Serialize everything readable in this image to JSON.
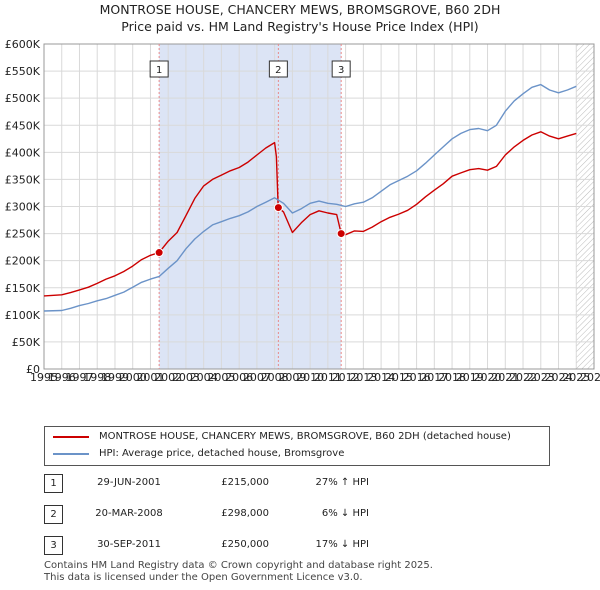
{
  "title_line1": "MONTROSE HOUSE, CHANCERY MEWS, BROMSGROVE, B60 2DH",
  "title_line2": "Price paid vs. HM Land Registry's House Price Index (HPI)",
  "colors": {
    "property": "#cc0000",
    "hpi": "#6b93c8",
    "shade": "#dce4f5",
    "grid": "#d9d9d9",
    "vline": "#e88a8a"
  },
  "chart_data": {
    "type": "line",
    "title": "MONTROSE HOUSE, CHANCERY MEWS, BROMSGROVE, B60 2DH",
    "subtitle": "Price paid vs. HM Land Registry's House Price Index (HPI)",
    "xlabel": "",
    "ylabel": "",
    "xlim": [
      1995,
      2026
    ],
    "ylim": [
      0,
      600000
    ],
    "x_ticks": [
      "1995",
      "1996",
      "1997",
      "1998",
      "1999",
      "2000",
      "2001",
      "2002",
      "2003",
      "2004",
      "2005",
      "2006",
      "2007",
      "2008",
      "2009",
      "2010",
      "2011",
      "2012",
      "2013",
      "2014",
      "2015",
      "2016",
      "2017",
      "2018",
      "2019",
      "2020",
      "2021",
      "2022",
      "2023",
      "2024",
      "2025",
      "2026"
    ],
    "y_ticks": [
      {
        "value": 0,
        "label": "£0"
      },
      {
        "value": 50000,
        "label": "£50K"
      },
      {
        "value": 100000,
        "label": "£100K"
      },
      {
        "value": 150000,
        "label": "£150K"
      },
      {
        "value": 200000,
        "label": "£200K"
      },
      {
        "value": 250000,
        "label": "£250K"
      },
      {
        "value": 300000,
        "label": "£300K"
      },
      {
        "value": 350000,
        "label": "£350K"
      },
      {
        "value": 400000,
        "label": "£400K"
      },
      {
        "value": 450000,
        "label": "£450K"
      },
      {
        "value": 500000,
        "label": "£500K"
      },
      {
        "value": 550000,
        "label": "£550K"
      },
      {
        "value": 600000,
        "label": "£600K"
      }
    ],
    "grid": true,
    "shaded_range": [
      2001.49,
      2011.75
    ],
    "future_hatch_from": 2025.0,
    "series": [
      {
        "name": "MONTROSE HOUSE, CHANCERY MEWS, BROMSGROVE, B60 2DH (detached house)",
        "color": "#cc0000",
        "points": [
          [
            1995,
            135000
          ],
          [
            1996,
            137000
          ],
          [
            1996.5,
            141000
          ],
          [
            1997,
            146000
          ],
          [
            1997.5,
            151000
          ],
          [
            1998,
            158000
          ],
          [
            1998.5,
            166000
          ],
          [
            1999,
            172000
          ],
          [
            1999.5,
            180000
          ],
          [
            2000,
            190000
          ],
          [
            2000.5,
            202000
          ],
          [
            2001,
            210000
          ],
          [
            2001.49,
            215000
          ],
          [
            2002,
            236000
          ],
          [
            2002.5,
            252000
          ],
          [
            2003,
            283000
          ],
          [
            2003.5,
            315000
          ],
          [
            2004,
            338000
          ],
          [
            2004.5,
            350000
          ],
          [
            2005,
            358000
          ],
          [
            2005.5,
            366000
          ],
          [
            2006,
            372000
          ],
          [
            2006.5,
            382000
          ],
          [
            2007,
            395000
          ],
          [
            2007.5,
            408000
          ],
          [
            2008,
            418000
          ],
          [
            2008.1,
            392000
          ],
          [
            2008.2,
            298000
          ],
          [
            2008.5,
            290000
          ],
          [
            2009,
            252000
          ],
          [
            2009.5,
            270000
          ],
          [
            2010,
            285000
          ],
          [
            2010.5,
            292000
          ],
          [
            2011,
            288000
          ],
          [
            2011.5,
            285000
          ],
          [
            2011.75,
            250000
          ],
          [
            2012,
            248000
          ],
          [
            2012.5,
            255000
          ],
          [
            2013,
            254000
          ],
          [
            2013.5,
            262000
          ],
          [
            2014,
            272000
          ],
          [
            2014.5,
            280000
          ],
          [
            2015,
            286000
          ],
          [
            2015.5,
            293000
          ],
          [
            2016,
            304000
          ],
          [
            2016.5,
            318000
          ],
          [
            2017,
            330000
          ],
          [
            2017.5,
            342000
          ],
          [
            2018,
            356000
          ],
          [
            2018.5,
            362000
          ],
          [
            2019,
            368000
          ],
          [
            2019.5,
            370000
          ],
          [
            2020,
            367000
          ],
          [
            2020.5,
            374000
          ],
          [
            2021,
            395000
          ],
          [
            2021.5,
            410000
          ],
          [
            2022,
            422000
          ],
          [
            2022.5,
            432000
          ],
          [
            2023,
            438000
          ],
          [
            2023.5,
            430000
          ],
          [
            2024,
            425000
          ],
          [
            2024.5,
            430000
          ],
          [
            2025,
            435000
          ]
        ]
      },
      {
        "name": "HPI: Average price, detached house, Bromsgrove",
        "color": "#6b93c8",
        "points": [
          [
            1995,
            107000
          ],
          [
            1996,
            108000
          ],
          [
            1996.5,
            112000
          ],
          [
            1997,
            117000
          ],
          [
            1997.5,
            121000
          ],
          [
            1998,
            126000
          ],
          [
            1998.5,
            130000
          ],
          [
            1999,
            136000
          ],
          [
            1999.5,
            142000
          ],
          [
            2000,
            151000
          ],
          [
            2000.5,
            160000
          ],
          [
            2001,
            166000
          ],
          [
            2001.5,
            171000
          ],
          [
            2002,
            186000
          ],
          [
            2002.5,
            200000
          ],
          [
            2003,
            222000
          ],
          [
            2003.5,
            240000
          ],
          [
            2004,
            254000
          ],
          [
            2004.5,
            266000
          ],
          [
            2005,
            272000
          ],
          [
            2005.5,
            278000
          ],
          [
            2006,
            283000
          ],
          [
            2006.5,
            290000
          ],
          [
            2007,
            300000
          ],
          [
            2007.5,
            308000
          ],
          [
            2008,
            316000
          ],
          [
            2008.5,
            306000
          ],
          [
            2009,
            288000
          ],
          [
            2009.5,
            296000
          ],
          [
            2010,
            306000
          ],
          [
            2010.5,
            310000
          ],
          [
            2011,
            306000
          ],
          [
            2011.5,
            304000
          ],
          [
            2012,
            300000
          ],
          [
            2012.5,
            305000
          ],
          [
            2013,
            308000
          ],
          [
            2013.5,
            316000
          ],
          [
            2014,
            328000
          ],
          [
            2014.5,
            340000
          ],
          [
            2015,
            348000
          ],
          [
            2015.5,
            356000
          ],
          [
            2016,
            366000
          ],
          [
            2016.5,
            380000
          ],
          [
            2017,
            395000
          ],
          [
            2017.5,
            410000
          ],
          [
            2018,
            425000
          ],
          [
            2018.5,
            435000
          ],
          [
            2019,
            442000
          ],
          [
            2019.5,
            444000
          ],
          [
            2020,
            440000
          ],
          [
            2020.5,
            450000
          ],
          [
            2021,
            476000
          ],
          [
            2021.5,
            495000
          ],
          [
            2022,
            508000
          ],
          [
            2022.5,
            520000
          ],
          [
            2023,
            525000
          ],
          [
            2023.5,
            515000
          ],
          [
            2024,
            510000
          ],
          [
            2024.5,
            515000
          ],
          [
            2025,
            522000
          ]
        ]
      }
    ],
    "annotations": [
      {
        "label": "1",
        "x": 2001.49,
        "y": 215000
      },
      {
        "label": "2",
        "x": 2008.21,
        "y": 298000
      },
      {
        "label": "3",
        "x": 2011.75,
        "y": 250000
      }
    ]
  },
  "legend": [
    {
      "label": "MONTROSE HOUSE, CHANCERY MEWS, BROMSGROVE, B60 2DH (detached house)",
      "color": "#cc0000"
    },
    {
      "label": "HPI: Average price, detached house, Bromsgrove",
      "color": "#6b93c8"
    }
  ],
  "sales": [
    {
      "num": "1",
      "date": "29-JUN-2001",
      "price": "£215,000",
      "hpi": "27% ↑ HPI"
    },
    {
      "num": "2",
      "date": "20-MAR-2008",
      "price": "£298,000",
      "hpi": "6% ↓ HPI"
    },
    {
      "num": "3",
      "date": "30-SEP-2011",
      "price": "£250,000",
      "hpi": "17% ↓ HPI"
    }
  ],
  "footer_line1": "Contains HM Land Registry data © Crown copyright and database right 2025.",
  "footer_line2": "This data is licensed under the Open Government Licence v3.0."
}
